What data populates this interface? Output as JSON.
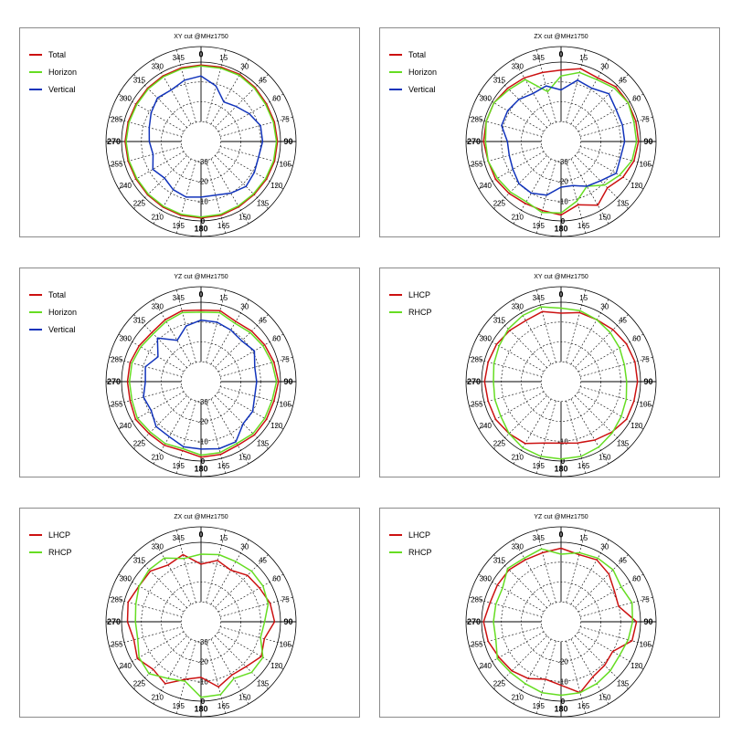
{
  "colors": {
    "total": "#cc1111",
    "horizon": "#66dd22",
    "vertical": "#1133bb",
    "lhcp": "#cc1111",
    "rhcp": "#66dd22"
  },
  "chart_data": [
    {
      "type": "polar",
      "title": "XY cut @MHz1750",
      "rings": [
        "0",
        "-10",
        "-20",
        "-30"
      ],
      "angles": [
        0,
        15,
        30,
        45,
        60,
        75,
        90,
        105,
        120,
        135,
        150,
        165,
        180,
        195,
        210,
        225,
        240,
        255,
        270,
        285,
        300,
        315,
        330,
        345
      ],
      "series": [
        {
          "name": "Total",
          "color": "#cc1111",
          "values": [
            -1.5,
            -1.2,
            -1.0,
            -1.5,
            -2.0,
            -1.8,
            -1.5,
            -1.7,
            -2.0,
            -2.2,
            -2.0,
            -1.5,
            -1.5,
            -1.5,
            -1.8,
            -2.0,
            -2.2,
            -2.0,
            -1.8,
            -2.0,
            -2.2,
            -2.0,
            -1.8,
            -1.6
          ]
        },
        {
          "name": "Horizon",
          "color": "#66dd22",
          "values": [
            -2.0,
            -1.8,
            -1.5,
            -2.0,
            -2.5,
            -2.3,
            -2.0,
            -2.2,
            -2.5,
            -2.7,
            -2.5,
            -2.0,
            -2.0,
            -2.0,
            -2.3,
            -2.5,
            -2.7,
            -2.5,
            -2.3,
            -2.5,
            -2.7,
            -2.5,
            -2.3,
            -2.1
          ]
        },
        {
          "name": "Vertical",
          "color": "#1133bb",
          "values": [
            -7,
            -11,
            -17,
            -15,
            -12,
            -9,
            -9,
            -10,
            -9,
            -8,
            -10,
            -12,
            -12,
            -11,
            -12,
            -14,
            -12,
            -15,
            -14,
            -13,
            -11,
            -9,
            -10,
            -8
          ]
        }
      ]
    },
    {
      "type": "polar",
      "title": "ZX cut @MHz1750",
      "rings": [
        "0",
        "-10",
        "-20",
        "-30"
      ],
      "angles": [
        0,
        15,
        30,
        45,
        60,
        75,
        90,
        105,
        120,
        135,
        150,
        165,
        180,
        195,
        210,
        225,
        240,
        255,
        270,
        285,
        300,
        315,
        330,
        345
      ],
      "series": [
        {
          "name": "Total",
          "color": "#cc1111",
          "values": [
            -4,
            -2,
            -3,
            -1,
            -1,
            -1,
            -1,
            -2,
            -4,
            -7,
            -3,
            -7,
            -3,
            -4,
            -4,
            -3,
            -2,
            -2,
            -1,
            -1,
            -1,
            -2,
            -3,
            -4
          ]
        },
        {
          "name": "Horizon",
          "color": "#66dd22",
          "values": [
            -7,
            -4,
            -4,
            -2,
            -1,
            -2,
            -2,
            -3,
            -6,
            -9,
            -14,
            -9,
            -4,
            -3,
            -5,
            -4,
            -3,
            -2,
            -2,
            -1,
            -1,
            -3,
            -4,
            -14
          ]
        },
        {
          "name": "Vertical",
          "color": "#1133bb",
          "values": [
            -14,
            -8,
            -9,
            -6,
            -8,
            -8,
            -8,
            -9,
            -8,
            -12,
            -14,
            -17,
            -17,
            -12,
            -10,
            -10,
            -12,
            -13,
            -13,
            -9,
            -9,
            -10,
            -12,
            -11
          ]
        }
      ]
    },
    {
      "type": "polar",
      "title": "YZ cut @MHz1750",
      "rings": [
        "0",
        "-10",
        "-20",
        "-30"
      ],
      "angles": [
        0,
        15,
        30,
        45,
        60,
        75,
        90,
        105,
        120,
        135,
        150,
        165,
        180,
        195,
        210,
        225,
        240,
        255,
        270,
        285,
        300,
        315,
        330,
        345
      ],
      "series": [
        {
          "name": "Total",
          "color": "#cc1111",
          "values": [
            -4,
            -3,
            -5,
            -4,
            -3,
            -2,
            -1,
            -2,
            -2,
            -2,
            -3,
            -2,
            -2,
            -4,
            -3,
            -3,
            -2,
            -3,
            -3,
            -3,
            -4,
            -5,
            -4,
            -3
          ]
        },
        {
          "name": "Horizon",
          "color": "#66dd22",
          "values": [
            -5,
            -4,
            -6,
            -5,
            -4,
            -3,
            -2,
            -3,
            -3,
            -3,
            -4,
            -3,
            -3,
            -5,
            -4,
            -4,
            -3,
            -4,
            -4,
            -4,
            -5,
            -6,
            -5,
            -4
          ]
        },
        {
          "name": "Vertical",
          "color": "#1133bb",
          "values": [
            -9,
            -9,
            -10,
            -11,
            -9,
            -12,
            -12,
            -12,
            -10,
            -10,
            -5,
            -5,
            -6,
            -6,
            -8,
            -8,
            -11,
            -10,
            -12,
            -11,
            -15,
            -9,
            -16,
            -11
          ]
        }
      ]
    },
    {
      "type": "polar",
      "title": "XY cut @MHz1750",
      "rings": [
        "0",
        "-10"
      ],
      "angles": [
        0,
        15,
        30,
        45,
        60,
        75,
        90,
        105,
        120,
        135,
        150,
        165,
        180,
        195,
        210,
        225,
        240,
        255,
        270,
        285,
        300,
        315,
        330,
        345
      ],
      "series": [
        {
          "name": "LHCP",
          "color": "#cc1111",
          "values": [
            -5.5,
            -4,
            -4,
            -3,
            -2,
            -1.5,
            -1.5,
            -2,
            -2,
            -4,
            -6,
            -8,
            -9,
            -8,
            -4,
            -3,
            -2,
            -2,
            -1.5,
            -2,
            -2.5,
            -3.5,
            -4.5,
            -3.5
          ]
        },
        {
          "name": "RHCP",
          "color": "#66dd22",
          "values": [
            -3,
            -3,
            -4,
            -5,
            -6,
            -7,
            -7,
            -6,
            -5,
            -3.5,
            -2,
            -1,
            -1,
            -1,
            -1.5,
            -3,
            -5,
            -5.5,
            -6,
            -5,
            -4,
            -2.5,
            -1.5,
            -1
          ]
        }
      ]
    },
    {
      "type": "polar",
      "title": "ZX cut @MHz1750",
      "rings": [
        "0",
        "-10",
        "-20",
        "-30"
      ],
      "angles": [
        0,
        15,
        30,
        45,
        60,
        75,
        90,
        105,
        120,
        135,
        150,
        165,
        180,
        195,
        210,
        225,
        240,
        255,
        270,
        285,
        300,
        315,
        330,
        345
      ],
      "series": [
        {
          "name": "LHCP",
          "color": "#cc1111",
          "values": [
            -11,
            -8,
            -10,
            -7,
            -6,
            -4,
            -3,
            -7,
            -5,
            -8,
            -9,
            -6,
            -12,
            -10,
            -4,
            -6,
            -3,
            -5,
            -3,
            -2,
            -4,
            -4,
            -7,
            -5
          ]
        },
        {
          "name": "RHCP",
          "color": "#66dd22",
          "values": [
            -6,
            -5,
            -5,
            -4,
            -4,
            -5,
            -8,
            -9,
            -4,
            -4,
            -7,
            -2,
            -2,
            -9,
            -7,
            -3,
            -4,
            -7,
            -7,
            -6,
            -4,
            -3,
            -3,
            -7
          ]
        }
      ]
    },
    {
      "type": "polar",
      "title": "YZ cut @MHz1750",
      "rings": [
        "0",
        "-10",
        "-20"
      ],
      "angles": [
        0,
        15,
        30,
        45,
        60,
        75,
        90,
        105,
        120,
        135,
        150,
        165,
        180,
        195,
        210,
        225,
        240,
        255,
        270,
        285,
        300,
        315,
        330,
        345
      ],
      "series": [
        {
          "name": "LHCP",
          "color": "#cc1111",
          "values": [
            -3,
            -5,
            -4,
            -6,
            -9,
            -10,
            -2,
            -3,
            -10,
            -9,
            -8,
            -3,
            -8,
            -10,
            -7,
            -5,
            -4,
            -2,
            -1,
            -3,
            -3,
            -3,
            -4,
            -4
          ]
        },
        {
          "name": "RHCP",
          "color": "#66dd22",
          "values": [
            -6,
            -4,
            -3,
            -3,
            -5,
            -3,
            -4,
            -5,
            -6,
            -5,
            -4,
            -3,
            -3,
            -3,
            -4,
            -4,
            -3,
            -6,
            -6,
            -6,
            -6,
            -2,
            -3,
            -2
          ]
        }
      ]
    }
  ]
}
